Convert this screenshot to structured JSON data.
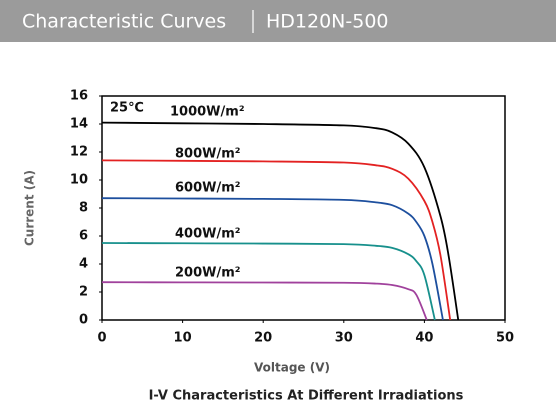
{
  "header": {
    "title": "Characteristic Curves",
    "model": "HD120N-500"
  },
  "chart_data": {
    "type": "line",
    "xlabel": "Voltage  (V)",
    "ylabel": "Current (A)",
    "caption": "I-V Characteristics At Different Irradiations",
    "annotation": "25℃",
    "xlim": [
      0,
      50
    ],
    "xticks": [
      0,
      10,
      20,
      30,
      40,
      50
    ],
    "ylim": [
      0,
      16
    ],
    "yticks": [
      0,
      2,
      4,
      6,
      8,
      10,
      12,
      14,
      16
    ],
    "series": [
      {
        "name": "1000W/m²",
        "color": "#000000",
        "x": [
          0,
          10,
          20,
          30,
          34,
          36,
          38,
          40,
          42,
          43,
          44.2
        ],
        "values": [
          14.1,
          14.05,
          14.0,
          13.9,
          13.7,
          13.4,
          12.6,
          10.9,
          7.4,
          4.6,
          0
        ]
      },
      {
        "name": "800W/m²",
        "color": "#e32222",
        "x": [
          0,
          10,
          20,
          30,
          34,
          36,
          38,
          40,
          41,
          42,
          43.2
        ],
        "values": [
          11.4,
          11.37,
          11.33,
          11.25,
          11.05,
          10.8,
          10.1,
          8.5,
          7.0,
          4.6,
          0
        ]
      },
      {
        "name": "600W/m²",
        "color": "#1d4f9e",
        "x": [
          0,
          10,
          20,
          30,
          34,
          36,
          38,
          39,
          40,
          41,
          42.3
        ],
        "values": [
          8.7,
          8.68,
          8.65,
          8.58,
          8.4,
          8.2,
          7.6,
          7.0,
          6.0,
          4.0,
          0
        ]
      },
      {
        "name": "400W/m²",
        "color": "#17908c",
        "x": [
          0,
          10,
          20,
          30,
          34,
          36,
          38,
          39,
          40,
          41.3
        ],
        "values": [
          5.5,
          5.48,
          5.46,
          5.42,
          5.3,
          5.15,
          4.7,
          4.2,
          3.2,
          0
        ]
      },
      {
        "name": "200W/m²",
        "color": "#a0419c",
        "x": [
          0,
          10,
          20,
          30,
          34,
          36,
          38,
          39,
          40.3
        ],
        "values": [
          2.7,
          2.69,
          2.68,
          2.66,
          2.6,
          2.5,
          2.2,
          1.8,
          0
        ]
      }
    ]
  }
}
